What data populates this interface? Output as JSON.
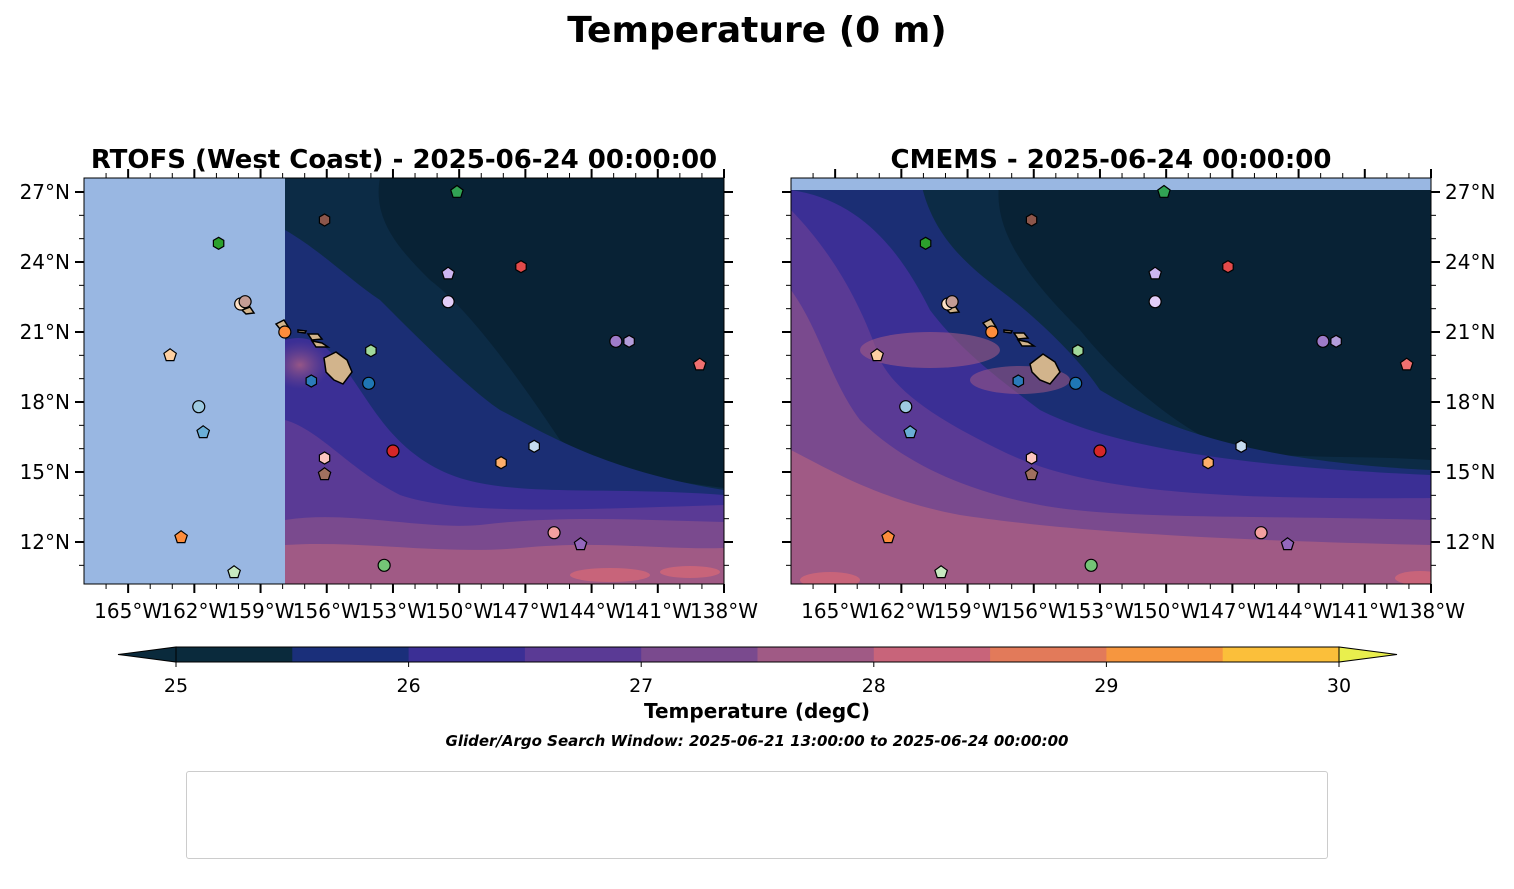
{
  "suptitle": "Temperature (0 m)",
  "panel_titles": [
    "RTOFS (West Coast) - 2025-06-24 00:00:00",
    "CMEMS - 2025-06-24 00:00:00"
  ],
  "lon_ticks": [
    "165°W",
    "162°W",
    "159°W",
    "156°W",
    "153°W",
    "150°W",
    "147°W",
    "144°W",
    "141°W",
    "138°W"
  ],
  "lat_ticks": [
    "27°N",
    "24°N",
    "21°N",
    "18°N",
    "15°N",
    "12°N"
  ],
  "colorbar": {
    "label": "Temperature (degC)",
    "tick_labels": [
      "25",
      "26",
      "27",
      "28",
      "29",
      "30"
    ],
    "colors": [
      "#0a2a3c",
      "#1a2f7a",
      "#3b2f95",
      "#5a3a95",
      "#7a4a8e",
      "#a05a85",
      "#c8647a",
      "#e27a5a",
      "#f6963f",
      "#fbbf3a",
      "#e9ef4d"
    ]
  },
  "search_window": "Glider/Argo Search Window: 2025-06-21 13:00:00 to 2025-06-24 00:00:00",
  "chart_data": [
    {
      "type": "heatmap",
      "title": "RTOFS (West Coast) - 2025-06-24 00:00:00",
      "x_range": [
        -167,
        -138
      ],
      "y_range": [
        10.2,
        27.6
      ],
      "model_west_edge_lon": -157.9,
      "value_range_degC": [
        25,
        30
      ],
      "colorscale_label": "Temperature (degC)"
    },
    {
      "type": "heatmap",
      "title": "CMEMS - 2025-06-24 00:00:00",
      "x_range": [
        -167,
        -138
      ],
      "y_range": [
        10.2,
        27.6
      ],
      "value_range_degC": [
        25,
        30
      ],
      "colorscale_label": "Temperature (degC)"
    },
    {
      "type": "scatter",
      "floats": [
        {
          "id": "1902649",
          "lon": -154.1,
          "lat": 18.8,
          "marker": "circle",
          "color": "#1f77b4"
        },
        {
          "id": "1902685",
          "lon": -156.7,
          "lat": 18.9,
          "marker": "hexagon",
          "color": "#2b7bba"
        },
        {
          "id": "2903452",
          "lon": -161.6,
          "lat": 16.7,
          "marker": "pentagon",
          "color": "#6aaed6"
        },
        {
          "id": "2903863",
          "lon": -161.8,
          "lat": 17.8,
          "marker": "circle",
          "color": "#9ecae1"
        },
        {
          "id": "2903868",
          "lon": -146.6,
          "lat": 16.1,
          "marker": "hexagon",
          "color": "#c6dbef"
        },
        {
          "id": "3902374",
          "lon": -162.6,
          "lat": 12.2,
          "marker": "pentagon",
          "color": "#fd8d3c"
        },
        {
          "id": "3902559",
          "lon": -157.9,
          "lat": 21.0,
          "marker": "circle",
          "color": "#fd8d3c"
        },
        {
          "id": "3902561",
          "lon": -148.1,
          "lat": 15.4,
          "marker": "hexagon",
          "color": "#fdae6b"
        },
        {
          "id": "3902613",
          "lon": -163.1,
          "lat": 20.0,
          "marker": "pentagon",
          "color": "#fdd0a2"
        },
        {
          "id": "4903320",
          "lon": -159.9,
          "lat": 22.2,
          "marker": "circle",
          "color": "#fde0c5"
        },
        {
          "id": "4903507",
          "lon": -160.9,
          "lat": 24.8,
          "marker": "hexagon",
          "color": "#2ca02c"
        },
        {
          "id": "4904976",
          "lon": -150.1,
          "lat": 27.0,
          "marker": "pentagon",
          "color": "#31a354"
        },
        {
          "id": "5905746",
          "lon": -153.4,
          "lat": 11.0,
          "marker": "circle",
          "color": "#74c476"
        },
        {
          "id": "5905853",
          "lon": -154.0,
          "lat": 20.2,
          "marker": "hexagon",
          "color": "#a1d99b"
        },
        {
          "id": "5906095",
          "lon": -160.2,
          "lat": 10.7,
          "marker": "pentagon",
          "color": "#c7e9c0"
        },
        {
          "id": "5906155",
          "lon": -153.0,
          "lat": 15.9,
          "marker": "circle",
          "color": "#d62728"
        },
        {
          "id": "5906156",
          "lon": -147.2,
          "lat": 23.8,
          "marker": "hexagon",
          "color": "#e34a4a"
        },
        {
          "id": "5906752",
          "lon": -139.1,
          "lat": 19.6,
          "marker": "pentagon",
          "color": "#f07070"
        },
        {
          "id": "5906753",
          "lon": -145.7,
          "lat": 12.4,
          "marker": "circle",
          "color": "#f4a0a0"
        },
        {
          "id": "5906755",
          "lon": -156.1,
          "lat": 15.6,
          "marker": "hexagon",
          "color": "#fcc5c0"
        },
        {
          "id": "5906756",
          "lon": -144.5,
          "lat": 11.9,
          "marker": "pentagon",
          "color": "#9467bd"
        },
        {
          "id": "5906801",
          "lon": -142.9,
          "lat": 20.6,
          "marker": "circle",
          "color": "#9e7bc9"
        },
        {
          "id": "5906814",
          "lon": -142.3,
          "lat": 20.6,
          "marker": "hexagon",
          "color": "#b39ddb"
        },
        {
          "id": "5906815",
          "lon": -150.5,
          "lat": 23.5,
          "marker": "pentagon",
          "color": "#cdb5f0"
        },
        {
          "id": "5907061",
          "lon": -150.5,
          "lat": 22.3,
          "marker": "circle",
          "color": "#e2cdf7"
        },
        {
          "id": "7900877",
          "lon": -156.1,
          "lat": 25.8,
          "marker": "hexagon",
          "color": "#8c564b"
        },
        {
          "id": "7901104",
          "lon": -156.1,
          "lat": 14.9,
          "marker": "pentagon",
          "color": "#a0705f"
        },
        {
          "id": "7901106",
          "lon": -159.7,
          "lat": 22.3,
          "marker": "circle",
          "color": "#c49c94"
        }
      ]
    }
  ]
}
